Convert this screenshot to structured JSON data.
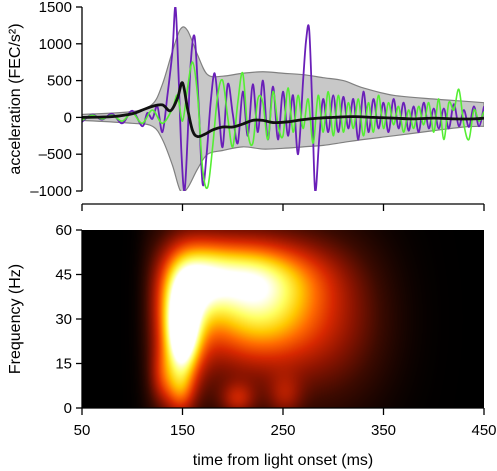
{
  "chart_data": [
    {
      "type": "line",
      "ylabel": "acceleration (FEC/s²)",
      "yticks": [
        1500,
        1000,
        500,
        0,
        -500,
        -1000
      ],
      "ytick_labels": [
        "1500",
        "1000",
        "500",
        "0",
        "–500",
        "–1000"
      ],
      "ylim": [
        -1000,
        1500
      ],
      "xlim": [
        50,
        450
      ],
      "xlabel": "",
      "grid": false,
      "colors": {
        "band": "#c8c8c8",
        "band_edge": "#808080",
        "mean": "#111111",
        "trace_a": "#6a1fb8",
        "trace_b": "#55ee33"
      },
      "band": {
        "x": [
          50,
          100,
          120,
          130,
          140,
          148,
          155,
          165,
          175,
          190,
          210,
          230,
          250,
          270,
          290,
          310,
          330,
          360,
          400,
          430,
          450
        ],
        "upper": [
          40,
          80,
          180,
          450,
          900,
          1200,
          1180,
          850,
          580,
          560,
          600,
          620,
          600,
          580,
          540,
          500,
          400,
          300,
          250,
          220,
          200
        ],
        "lower": [
          -40,
          -80,
          -120,
          -300,
          -650,
          -1000,
          -960,
          -700,
          -500,
          -450,
          -400,
          -430,
          -420,
          -400,
          -380,
          -340,
          -300,
          -250,
          -180,
          -130,
          -120
        ]
      },
      "series": [
        {
          "role": "mean",
          "x": [
            50,
            80,
            100,
            110,
            120,
            130,
            138,
            145,
            150,
            155,
            160,
            165,
            172,
            180,
            190,
            200,
            210,
            220,
            230,
            240,
            255,
            270,
            285,
            300,
            320,
            340,
            360,
            380,
            400,
            420,
            440,
            450
          ],
          "y": [
            0,
            10,
            50,
            100,
            150,
            170,
            90,
            260,
            470,
            120,
            -180,
            -260,
            -230,
            -170,
            -130,
            -130,
            -90,
            -40,
            -40,
            -70,
            -60,
            -30,
            -10,
            0,
            10,
            0,
            -10,
            -20,
            -10,
            -20,
            -20,
            -10
          ]
        },
        {
          "role": "trace_a",
          "x": [
            50,
            60,
            70,
            80,
            90,
            100,
            110,
            115,
            120,
            125,
            130,
            135,
            140,
            143,
            146,
            149,
            152,
            155,
            158,
            162,
            166,
            170,
            174,
            178,
            182,
            186,
            190,
            195,
            200,
            205,
            210,
            215,
            220,
            225,
            230,
            235,
            240,
            245,
            250,
            255,
            260,
            265,
            270,
            273,
            276,
            279,
            282,
            286,
            290,
            295,
            300,
            305,
            310,
            315,
            320,
            325,
            330,
            335,
            340,
            345,
            350,
            355,
            360,
            365,
            370,
            375,
            380,
            385,
            390,
            395,
            400,
            405,
            410,
            415,
            420,
            425,
            430,
            435,
            440,
            445,
            450
          ],
          "y": [
            -60,
            40,
            -30,
            50,
            -80,
            90,
            -120,
            60,
            -20,
            150,
            -200,
            300,
            900,
            1500,
            600,
            -500,
            -1000,
            -300,
            700,
            1100,
            200,
            -900,
            -500,
            200,
            600,
            100,
            -400,
            450,
            50,
            -350,
            350,
            -250,
            450,
            -200,
            500,
            -300,
            420,
            -300,
            350,
            -250,
            300,
            -500,
            500,
            1050,
            1200,
            200,
            -1000,
            -300,
            250,
            -200,
            300,
            -200,
            280,
            -150,
            250,
            -300,
            350,
            -200,
            250,
            -150,
            200,
            -200,
            250,
            -150,
            200,
            -180,
            150,
            -200,
            200,
            -150,
            120,
            -150,
            120,
            -150,
            180,
            -120,
            100,
            -130,
            150,
            -120,
            150
          ]
        },
        {
          "role": "trace_b",
          "x": [
            50,
            60,
            70,
            80,
            90,
            100,
            110,
            120,
            130,
            140,
            145,
            150,
            155,
            160,
            165,
            170,
            175,
            180,
            185,
            190,
            195,
            200,
            205,
            210,
            215,
            220,
            225,
            230,
            235,
            240,
            245,
            250,
            255,
            260,
            265,
            270,
            275,
            280,
            285,
            290,
            295,
            300,
            305,
            310,
            315,
            320,
            325,
            330,
            335,
            340,
            345,
            350,
            355,
            360,
            365,
            370,
            375,
            380,
            385,
            390,
            395,
            400,
            405,
            410,
            415,
            420,
            425,
            430,
            435,
            440,
            445,
            450
          ],
          "y": [
            -40,
            30,
            -20,
            30,
            -50,
            60,
            -80,
            100,
            -80,
            120,
            300,
            -50,
            400,
            750,
            300,
            -700,
            -950,
            -400,
            300,
            500,
            0,
            -400,
            200,
            600,
            -200,
            -350,
            250,
            200,
            -300,
            350,
            -100,
            -250,
            400,
            -200,
            300,
            -150,
            250,
            -350,
            300,
            -200,
            350,
            -250,
            300,
            -200,
            200,
            -150,
            250,
            -250,
            200,
            -200,
            300,
            -150,
            200,
            -100,
            150,
            -200,
            100,
            -150,
            150,
            -100,
            200,
            -200,
            250,
            -300,
            200,
            100,
            380,
            -100,
            -300,
            100,
            -50,
            80
          ]
        }
      ]
    },
    {
      "type": "heatmap",
      "ylabel": "Frequency (Hz)",
      "xlabel": "time from light onset (ms)",
      "xticks": [
        50,
        150,
        250,
        350,
        450
      ],
      "yticks": [
        0,
        15,
        30,
        45,
        60
      ],
      "xlim": [
        50,
        450
      ],
      "ylim": [
        0,
        60
      ],
      "colormap": [
        "#000000",
        "#3c0a00",
        "#8c1400",
        "#d82800",
        "#ff6a00",
        "#ffc800",
        "#ffff60",
        "#ffffff"
      ],
      "blobs": [
        {
          "t": 148,
          "f": 30,
          "st": 18,
          "sf": 14,
          "amp": 0.55
        },
        {
          "t": 150,
          "f": 25,
          "st": 11,
          "sf": 11,
          "amp": 0.6
        },
        {
          "t": 165,
          "f": 44,
          "st": 22,
          "sf": 9,
          "amp": 0.38
        },
        {
          "t": 200,
          "f": 46,
          "st": 35,
          "sf": 8,
          "amp": 0.35
        },
        {
          "t": 222,
          "f": 33,
          "st": 40,
          "sf": 12,
          "amp": 0.55
        },
        {
          "t": 250,
          "f": 45,
          "st": 40,
          "sf": 8,
          "amp": 0.18
        },
        {
          "t": 295,
          "f": 30,
          "st": 45,
          "sf": 18,
          "amp": 0.22
        },
        {
          "t": 200,
          "f": 30,
          "st": 90,
          "sf": 30,
          "amp": 0.15
        },
        {
          "t": 148,
          "f": 5,
          "st": 10,
          "sf": 6,
          "amp": 0.25
        },
        {
          "t": 130,
          "f": 10,
          "st": 10,
          "sf": 7,
          "amp": 0.22
        },
        {
          "t": 205,
          "f": 3,
          "st": 12,
          "sf": 4,
          "amp": 0.25
        },
        {
          "t": 252,
          "f": 4,
          "st": 12,
          "sf": 5,
          "amp": 0.18
        }
      ]
    }
  ]
}
